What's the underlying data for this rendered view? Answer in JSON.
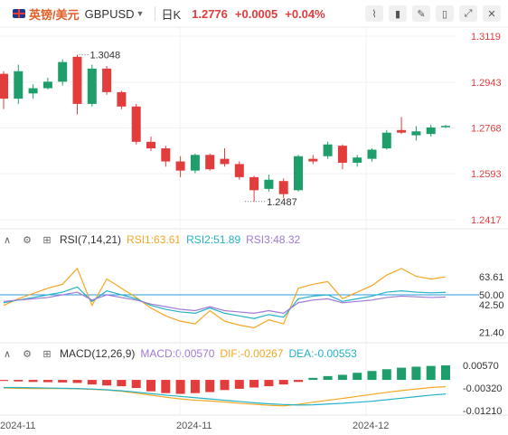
{
  "header": {
    "name": "英镑/美元",
    "symbol": "GBPUSD",
    "period": "日K",
    "price": "1.2776",
    "change": "+0.0005",
    "change_pct": "+0.04%",
    "accent_up": "#e23c3c",
    "accent_down": "#1e9e6a"
  },
  "toolbar": {
    "icons": [
      "line-chart-icon",
      "candle-type-icon",
      "draw-icon",
      "indicator-icon",
      "expand-icon",
      "close-icon"
    ]
  },
  "chart_data": [
    {
      "type": "candlestick",
      "y_ticks": [
        "1.3119",
        "1.2943",
        "1.2768",
        "1.2593",
        "1.2417"
      ],
      "ylim": [
        1.2417,
        1.3119
      ],
      "max_label": "1.3048",
      "min_label": "1.2487",
      "x_labels": [
        "2024-11",
        "2024-11",
        "2024-12"
      ],
      "candles": [
        {
          "o": 1.2975,
          "h": 1.2985,
          "l": 1.284,
          "c": 1.288
        },
        {
          "o": 1.288,
          "h": 1.301,
          "l": 1.286,
          "c": 1.2985
        },
        {
          "o": 1.29,
          "h": 1.2935,
          "l": 1.288,
          "c": 1.292
        },
        {
          "o": 1.292,
          "h": 1.296,
          "l": 1.2915,
          "c": 1.2945
        },
        {
          "o": 1.2945,
          "h": 1.303,
          "l": 1.293,
          "c": 1.302
        },
        {
          "o": 1.304,
          "h": 1.3048,
          "l": 1.282,
          "c": 1.286
        },
        {
          "o": 1.286,
          "h": 1.301,
          "l": 1.285,
          "c": 1.2995
        },
        {
          "o": 1.2995,
          "h": 1.3005,
          "l": 1.2895,
          "c": 1.2905
        },
        {
          "o": 1.2905,
          "h": 1.291,
          "l": 1.284,
          "c": 1.285
        },
        {
          "o": 1.285,
          "h": 1.286,
          "l": 1.2705,
          "c": 1.2715
        },
        {
          "o": 1.2715,
          "h": 1.2735,
          "l": 1.268,
          "c": 1.269
        },
        {
          "o": 1.269,
          "h": 1.27,
          "l": 1.262,
          "c": 1.264
        },
        {
          "o": 1.264,
          "h": 1.266,
          "l": 1.258,
          "c": 1.2605
        },
        {
          "o": 1.2605,
          "h": 1.267,
          "l": 1.2595,
          "c": 1.2665
        },
        {
          "o": 1.2665,
          "h": 1.267,
          "l": 1.2605,
          "c": 1.261
        },
        {
          "o": 1.265,
          "h": 1.269,
          "l": 1.262,
          "c": 1.263
        },
        {
          "o": 1.263,
          "h": 1.264,
          "l": 1.257,
          "c": 1.258
        },
        {
          "o": 1.258,
          "h": 1.2585,
          "l": 1.2487,
          "c": 1.253
        },
        {
          "o": 1.2535,
          "h": 1.259,
          "l": 1.2525,
          "c": 1.257
        },
        {
          "o": 1.2565,
          "h": 1.2575,
          "l": 1.25,
          "c": 1.2515
        },
        {
          "o": 1.253,
          "h": 1.2665,
          "l": 1.2525,
          "c": 1.266
        },
        {
          "o": 1.265,
          "h": 1.2665,
          "l": 1.263,
          "c": 1.264
        },
        {
          "o": 1.266,
          "h": 1.2715,
          "l": 1.265,
          "c": 1.2705
        },
        {
          "o": 1.27,
          "h": 1.2705,
          "l": 1.261,
          "c": 1.2635
        },
        {
          "o": 1.2635,
          "h": 1.2665,
          "l": 1.262,
          "c": 1.2655
        },
        {
          "o": 1.265,
          "h": 1.269,
          "l": 1.264,
          "c": 1.2685
        },
        {
          "o": 1.269,
          "h": 1.276,
          "l": 1.2685,
          "c": 1.275
        },
        {
          "o": 1.276,
          "h": 1.281,
          "l": 1.2745,
          "c": 1.275
        },
        {
          "o": 1.274,
          "h": 1.2775,
          "l": 1.272,
          "c": 1.2755
        },
        {
          "o": 1.2745,
          "h": 1.278,
          "l": 1.2735,
          "c": 1.277
        },
        {
          "o": 1.2771,
          "h": 1.278,
          "l": 1.2768,
          "c": 1.2776
        }
      ]
    },
    {
      "type": "line",
      "title": "RSI(7,14,21)",
      "ylim": [
        15,
        85
      ],
      "y_ticks": [
        "63.61",
        "50.00",
        "42.50",
        "21.40"
      ],
      "ref_line": 50,
      "series": [
        {
          "name": "RSI1:63.61",
          "color": "#f5a623",
          "values": [
            42,
            47,
            51,
            55,
            58,
            70,
            42,
            62,
            55,
            48,
            40,
            34,
            30,
            28,
            38,
            30,
            27,
            25,
            31,
            28,
            55,
            58,
            60,
            47,
            52,
            57,
            65,
            70,
            64,
            62,
            63.61
          ]
        },
        {
          "name": "RSI2:51.89",
          "color": "#23b2c7",
          "values": [
            44,
            46,
            48,
            50,
            52,
            56,
            45,
            53,
            50,
            47,
            42,
            39,
            37,
            36,
            40,
            36,
            34,
            32,
            35,
            33,
            47,
            49,
            50,
            45,
            47,
            49,
            52,
            53,
            52,
            51.5,
            51.89
          ]
        },
        {
          "name": "RSI3:48.32",
          "color": "#a07ad6",
          "values": [
            45,
            46,
            47,
            48,
            50,
            52,
            46,
            50,
            48,
            46,
            43,
            41,
            39,
            38,
            41,
            38,
            37,
            36,
            38,
            36,
            44,
            46,
            47,
            44,
            45,
            46,
            48,
            49,
            48.5,
            48,
            48.32
          ]
        }
      ]
    },
    {
      "type": "bar+line",
      "title": "MACD(12,26,9)",
      "ylim": [
        -0.0135,
        0.0075
      ],
      "y_ticks": [
        "0.00570",
        "-0.00320",
        "-0.01210"
      ],
      "legend": [
        {
          "name": "MACD:0.00570",
          "color": "#a07ad6"
        },
        {
          "name": "DIF:-0.00267",
          "color": "#f5a623"
        },
        {
          "name": "DEA:-0.00553",
          "color": "#23b2c7"
        }
      ],
      "macd": [
        -0.0004,
        -0.0006,
        -0.0008,
        -0.0009,
        -0.001,
        -0.0012,
        -0.0018,
        -0.0022,
        -0.0025,
        -0.0032,
        -0.0045,
        -0.0052,
        -0.0055,
        -0.0052,
        -0.0048,
        -0.004,
        -0.0035,
        -0.003,
        -0.0025,
        -0.0018,
        -0.0008,
        0.0008,
        0.0015,
        0.002,
        0.0028,
        0.0035,
        0.0042,
        0.0048,
        0.0052,
        0.0055,
        0.0057
      ],
      "dif": [
        -0.0032,
        -0.0033,
        -0.0034,
        -0.0034,
        -0.0034,
        -0.0035,
        -0.0037,
        -0.004,
        -0.0045,
        -0.0052,
        -0.006,
        -0.0068,
        -0.0075,
        -0.008,
        -0.0083,
        -0.0087,
        -0.0092,
        -0.0096,
        -0.01,
        -0.0102,
        -0.0096,
        -0.0088,
        -0.008,
        -0.0073,
        -0.0065,
        -0.0057,
        -0.0049,
        -0.0042,
        -0.0036,
        -0.003,
        -0.00267
      ],
      "dea": [
        -0.003,
        -0.003,
        -0.0031,
        -0.0032,
        -0.0033,
        -0.0034,
        -0.0036,
        -0.0039,
        -0.0043,
        -0.0048,
        -0.0054,
        -0.006,
        -0.0065,
        -0.007,
        -0.0075,
        -0.008,
        -0.0085,
        -0.009,
        -0.0094,
        -0.0097,
        -0.0099,
        -0.0098,
        -0.0095,
        -0.0092,
        -0.0088,
        -0.0084,
        -0.0078,
        -0.0072,
        -0.0066,
        -0.006,
        -0.00553
      ]
    }
  ]
}
